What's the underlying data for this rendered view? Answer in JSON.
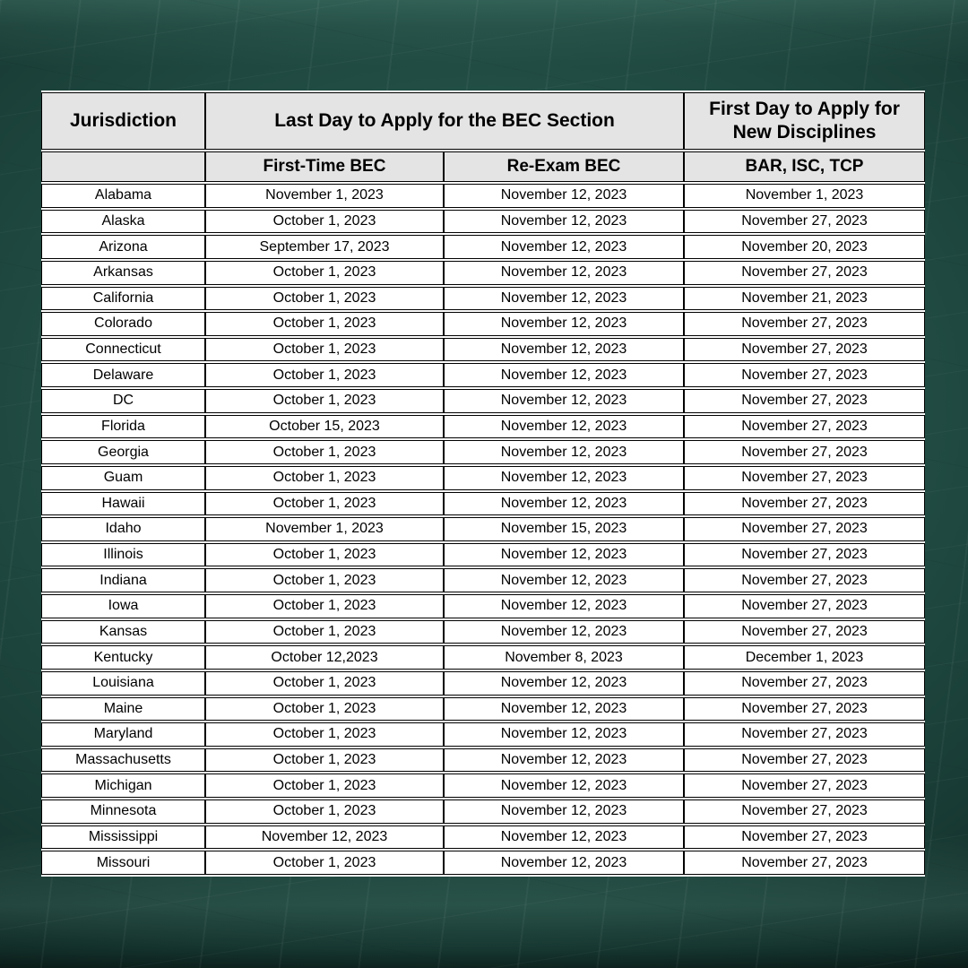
{
  "table": {
    "header": {
      "jurisdiction": "Jurisdiction",
      "bec_group": "Last Day to Apply for the BEC Section",
      "new_disciplines_line1": "First Day to Apply for",
      "new_disciplines_line2": "New Disciplines",
      "sub_jurisdiction": "",
      "sub_first_time": "First-Time BEC",
      "sub_re_exam": "Re-Exam BEC",
      "sub_new_disciplines": "BAR, ISC, TCP"
    },
    "rows": [
      {
        "jurisdiction": "Alabama",
        "first_time_bec": "November 1, 2023",
        "re_exam_bec": "November 12, 2023",
        "new_disciplines": "November 1, 2023"
      },
      {
        "jurisdiction": "Alaska",
        "first_time_bec": "October 1, 2023",
        "re_exam_bec": "November 12, 2023",
        "new_disciplines": "November 27, 2023"
      },
      {
        "jurisdiction": "Arizona",
        "first_time_bec": "September 17, 2023",
        "re_exam_bec": "November 12, 2023",
        "new_disciplines": "November 20, 2023"
      },
      {
        "jurisdiction": "Arkansas",
        "first_time_bec": "October 1, 2023",
        "re_exam_bec": "November 12, 2023",
        "new_disciplines": "November 27, 2023"
      },
      {
        "jurisdiction": "California",
        "first_time_bec": "October 1, 2023",
        "re_exam_bec": "November 12, 2023",
        "new_disciplines": "November 21, 2023"
      },
      {
        "jurisdiction": "Colorado",
        "first_time_bec": "October 1, 2023",
        "re_exam_bec": "November 12, 2023",
        "new_disciplines": "November 27, 2023"
      },
      {
        "jurisdiction": "Connecticut",
        "first_time_bec": "October 1, 2023",
        "re_exam_bec": "November 12, 2023",
        "new_disciplines": "November 27, 2023"
      },
      {
        "jurisdiction": "Delaware",
        "first_time_bec": "October 1, 2023",
        "re_exam_bec": "November 12, 2023",
        "new_disciplines": "November 27, 2023"
      },
      {
        "jurisdiction": "DC",
        "first_time_bec": "October 1, 2023",
        "re_exam_bec": "November 12, 2023",
        "new_disciplines": "November 27, 2023"
      },
      {
        "jurisdiction": "Florida",
        "first_time_bec": "October 15, 2023",
        "re_exam_bec": "November 12, 2023",
        "new_disciplines": "November 27, 2023"
      },
      {
        "jurisdiction": "Georgia",
        "first_time_bec": "October 1, 2023",
        "re_exam_bec": "November 12, 2023",
        "new_disciplines": "November 27, 2023"
      },
      {
        "jurisdiction": "Guam",
        "first_time_bec": "October 1, 2023",
        "re_exam_bec": "November 12, 2023",
        "new_disciplines": "November 27, 2023"
      },
      {
        "jurisdiction": "Hawaii",
        "first_time_bec": "October 1, 2023",
        "re_exam_bec": "November 12, 2023",
        "new_disciplines": "November 27, 2023"
      },
      {
        "jurisdiction": "Idaho",
        "first_time_bec": "November 1, 2023",
        "re_exam_bec": "November 15, 2023",
        "new_disciplines": "November 27, 2023"
      },
      {
        "jurisdiction": "Illinois",
        "first_time_bec": "October 1, 2023",
        "re_exam_bec": "November 12, 2023",
        "new_disciplines": "November 27, 2023"
      },
      {
        "jurisdiction": "Indiana",
        "first_time_bec": "October 1, 2023",
        "re_exam_bec": "November 12, 2023",
        "new_disciplines": "November 27, 2023"
      },
      {
        "jurisdiction": "Iowa",
        "first_time_bec": "October 1, 2023",
        "re_exam_bec": "November 12, 2023",
        "new_disciplines": "November 27, 2023"
      },
      {
        "jurisdiction": "Kansas",
        "first_time_bec": "October 1, 2023",
        "re_exam_bec": "November 12, 2023",
        "new_disciplines": "November 27, 2023"
      },
      {
        "jurisdiction": "Kentucky",
        "first_time_bec": "October 12,2023",
        "re_exam_bec": "November 8, 2023",
        "new_disciplines": "December 1, 2023"
      },
      {
        "jurisdiction": "Louisiana",
        "first_time_bec": "October 1, 2023",
        "re_exam_bec": "November 12, 2023",
        "new_disciplines": "November 27, 2023"
      },
      {
        "jurisdiction": "Maine",
        "first_time_bec": "October 1, 2023",
        "re_exam_bec": "November 12, 2023",
        "new_disciplines": "November 27, 2023"
      },
      {
        "jurisdiction": "Maryland",
        "first_time_bec": "October 1, 2023",
        "re_exam_bec": "November 12, 2023",
        "new_disciplines": "November 27, 2023"
      },
      {
        "jurisdiction": "Massachusetts",
        "first_time_bec": "October 1, 2023",
        "re_exam_bec": "November 12, 2023",
        "new_disciplines": "November 27, 2023"
      },
      {
        "jurisdiction": "Michigan",
        "first_time_bec": "October 1, 2023",
        "re_exam_bec": "November 12, 2023",
        "new_disciplines": "November 27, 2023"
      },
      {
        "jurisdiction": "Minnesota",
        "first_time_bec": "October 1, 2023",
        "re_exam_bec": "November 12, 2023",
        "new_disciplines": "November 27, 2023"
      },
      {
        "jurisdiction": "Mississippi",
        "first_time_bec": "November 12, 2023",
        "re_exam_bec": "November 12, 2023",
        "new_disciplines": "November 27, 2023"
      },
      {
        "jurisdiction": "Missouri",
        "first_time_bec": "October 1, 2023",
        "re_exam_bec": "November 12, 2023",
        "new_disciplines": "November 27, 2023"
      }
    ]
  },
  "colors": {
    "board_base": "#1c463e",
    "board_light": "#2a5c52",
    "board_dark": "#0f2823",
    "header_bg": "#e4e4e4",
    "cell_bg": "#ffffff",
    "border": "#000000",
    "text": "#000000"
  }
}
